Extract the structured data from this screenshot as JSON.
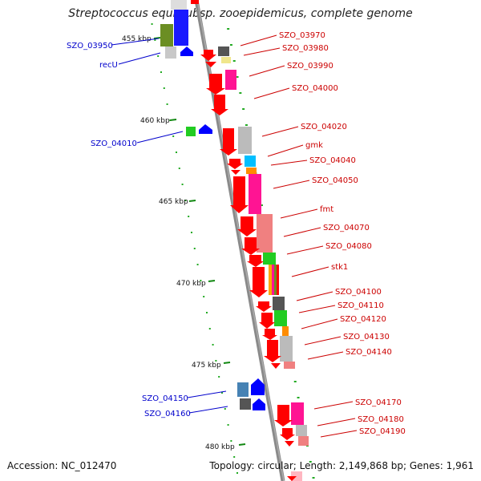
{
  "title": "Streptococcus equi subsp. zooepidemicus, complete genome",
  "footer": {
    "accession": "Accession: NC_012470",
    "summary": "Topology: circular; Length: 2,149,868 bp; Genes: 1,961"
  },
  "colors": {
    "forward_gene": "#ff0000",
    "reverse_gene": "#0000ff",
    "backbone": "#888888",
    "tick_minor": "#22aa22",
    "forward_label": "#cc0000",
    "reverse_label": "#0000cc"
  },
  "scale": {
    "ticks": [
      {
        "label": "455 kbp",
        "kbp": 455
      },
      {
        "label": "460 kbp",
        "kbp": 460
      },
      {
        "label": "465 kbp",
        "kbp": 465
      },
      {
        "label": "470 kbp",
        "kbp": 470
      },
      {
        "label": "475 kbp",
        "kbp": 475
      },
      {
        "label": "480 kbp",
        "kbp": 480
      }
    ]
  },
  "genes_forward": [
    {
      "name": "SZO_03970"
    },
    {
      "name": "SZO_03980"
    },
    {
      "name": "SZO_03990"
    },
    {
      "name": "SZO_04000"
    },
    {
      "name": "SZO_04020"
    },
    {
      "name": "gmk"
    },
    {
      "name": "SZO_04040"
    },
    {
      "name": "SZO_04050"
    },
    {
      "name": "fmt"
    },
    {
      "name": "SZO_04070"
    },
    {
      "name": "SZO_04080"
    },
    {
      "name": "stk1"
    },
    {
      "name": "SZO_04100"
    },
    {
      "name": "SZO_04110"
    },
    {
      "name": "SZO_04120"
    },
    {
      "name": "SZO_04130"
    },
    {
      "name": "SZO_04140"
    },
    {
      "name": "SZO_04170"
    },
    {
      "name": "SZO_04180"
    },
    {
      "name": "SZO_04190"
    }
  ],
  "genes_reverse": [
    {
      "name": "SZO_03950"
    },
    {
      "name": "recU"
    },
    {
      "name": "SZO_04010"
    },
    {
      "name": "SZO_04150"
    },
    {
      "name": "SZO_04160"
    }
  ]
}
